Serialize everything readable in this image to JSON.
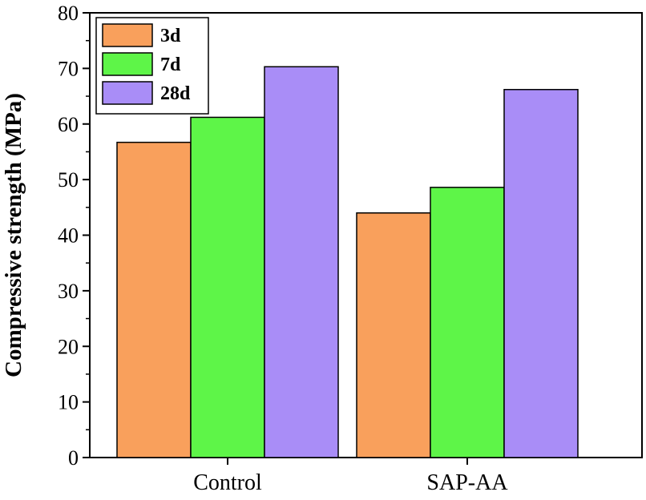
{
  "chart_data": {
    "type": "bar",
    "title": "",
    "xlabel": "",
    "ylabel": "Compressive strength (MPa)",
    "categories": [
      "Control",
      "SAP-AA"
    ],
    "series": [
      {
        "name": "3d",
        "values": [
          56.7,
          44.0
        ],
        "color": "#F9A05C"
      },
      {
        "name": "7d",
        "values": [
          61.2,
          48.6
        ],
        "color": "#5EF548"
      },
      {
        "name": "28d",
        "values": [
          70.3,
          66.2
        ],
        "color": "#A98DF7"
      }
    ],
    "ylim": [
      0,
      80
    ],
    "yticks": [
      0,
      10,
      20,
      30,
      40,
      50,
      60,
      70,
      80
    ],
    "grid": false,
    "legend_position": "top-left"
  }
}
